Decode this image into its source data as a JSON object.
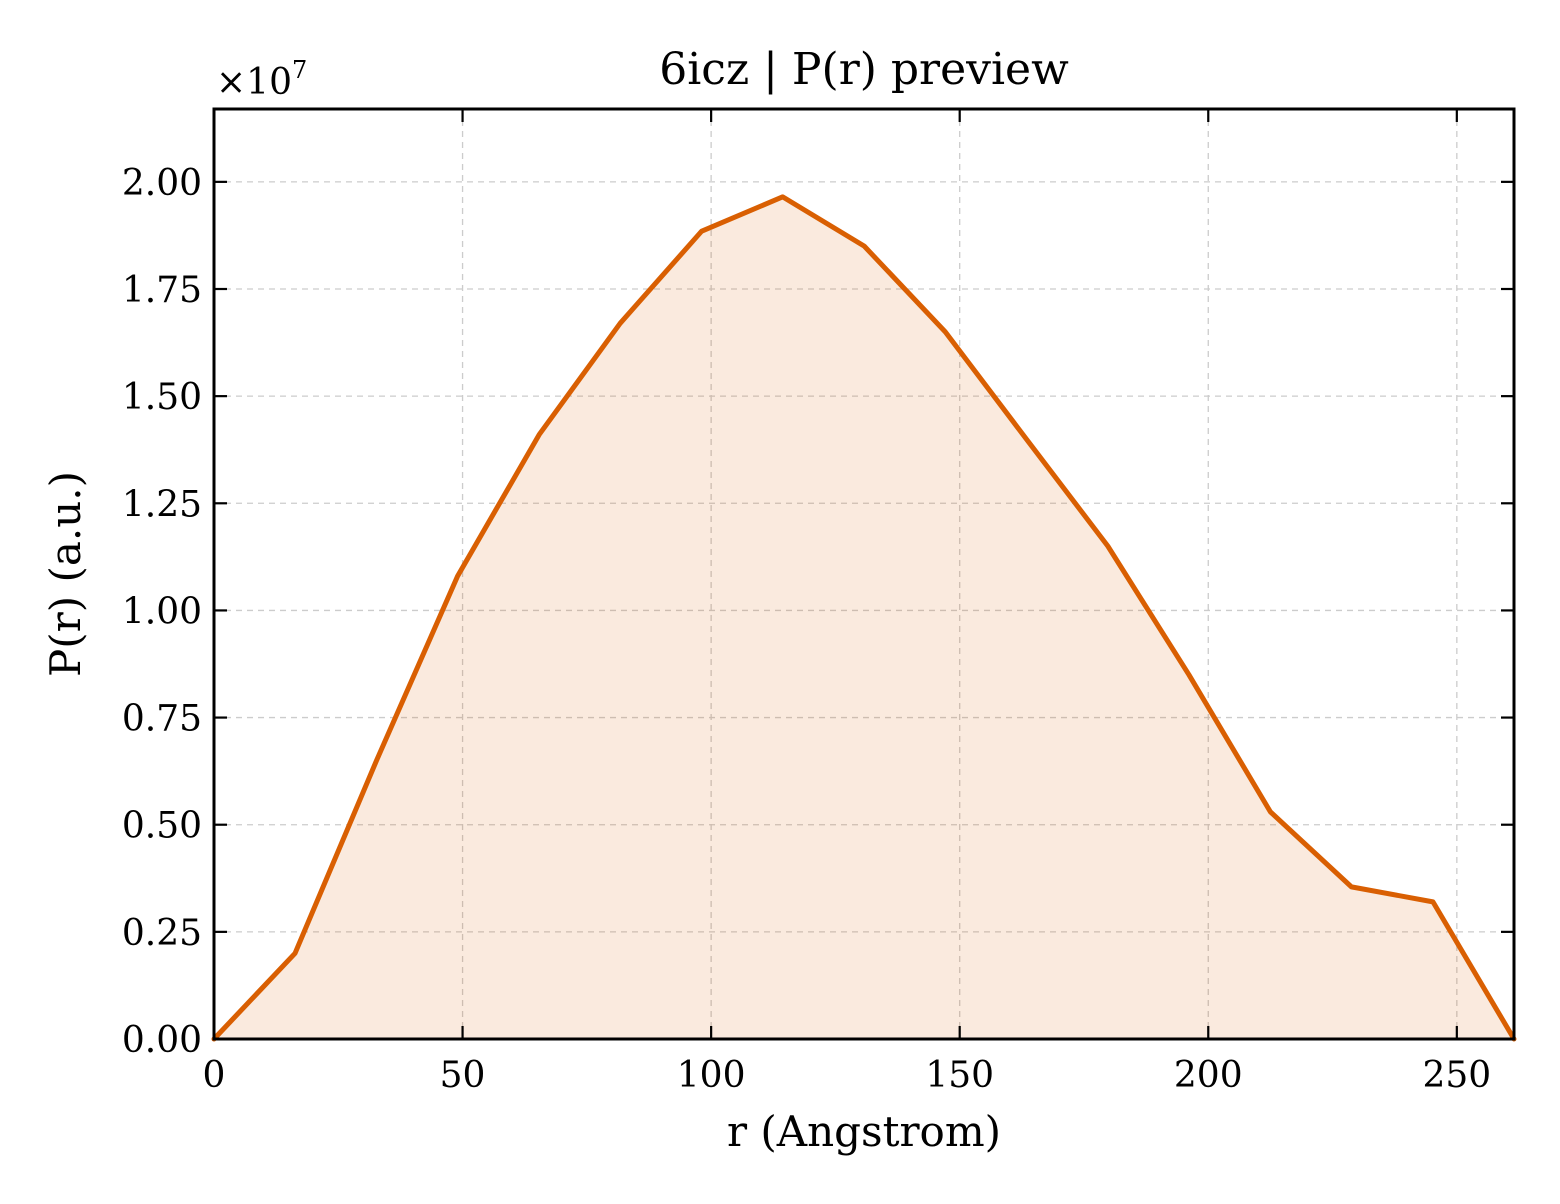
{
  "chart_data": {
    "type": "area",
    "title": "6icz | P(r) preview",
    "xlabel": "r (Angstrom)",
    "ylabel": "P(r) (a.u.)",
    "y_multiplier_label": "×10",
    "y_multiplier_exponent": "7",
    "xlim": [
      0,
      261.5
    ],
    "ylim": [
      0,
      2.17
    ],
    "y_scale_factor": 10000000,
    "x_ticks": [
      0,
      50,
      100,
      150,
      200,
      250
    ],
    "x_tick_labels": [
      "0",
      "50",
      "100",
      "150",
      "200",
      "250"
    ],
    "y_ticks": [
      0,
      0.25,
      0.5,
      0.75,
      1.0,
      1.25,
      1.5,
      1.75,
      2.0
    ],
    "y_tick_labels": [
      "0.00",
      "0.25",
      "0.50",
      "0.75",
      "1.00",
      "1.25",
      "1.50",
      "1.75",
      "2.00"
    ],
    "grid": true,
    "series": [
      {
        "color": "#d95f02",
        "fill_color": "#d95f02",
        "fill_opacity": 0.13,
        "x": [
          0,
          16.3,
          32.7,
          49.0,
          65.4,
          81.7,
          98.1,
          114.4,
          130.8,
          147.1,
          163.4,
          179.8,
          196.1,
          212.5,
          228.8,
          245.2,
          261.5
        ],
        "y": [
          0,
          0.2,
          0.65,
          1.08,
          1.41,
          1.67,
          1.885,
          1.965,
          1.85,
          1.65,
          1.4,
          1.15,
          0.85,
          0.53,
          0.355,
          0.32,
          0
        ]
      }
    ]
  }
}
